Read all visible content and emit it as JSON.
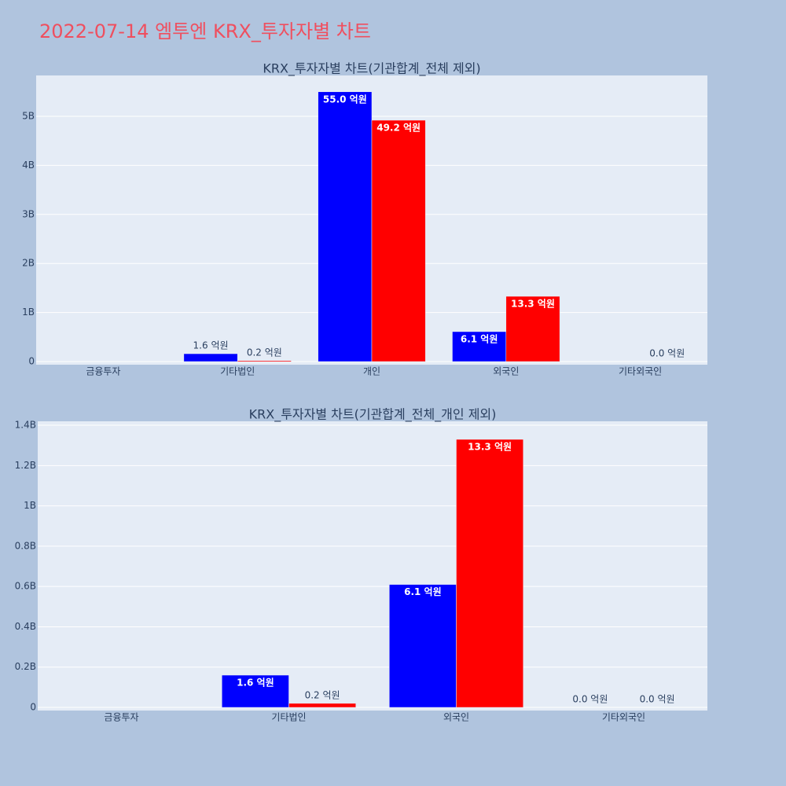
{
  "title": "2022-07-14 엠투엔 KRX_투자자별 차트",
  "chart_data": [
    {
      "type": "bar",
      "title": "KRX_투자자별 차트(기관합계_전체 제외)",
      "categories": [
        "금융투자",
        "기타법인",
        "개인",
        "외국인",
        "기타외국인"
      ],
      "series": [
        {
          "color": "#0000ff",
          "values": [
            null,
            160000000,
            5500000000,
            610000000,
            null
          ],
          "value_labels": [
            null,
            "1.6 억원",
            "55.0 억원",
            "6.1 억원",
            null
          ]
        },
        {
          "color": "#ff0000",
          "values": [
            null,
            20000000,
            4920000000,
            1330000000,
            0
          ],
          "value_labels": [
            null,
            "0.2 억원",
            "49.2 억원",
            "13.3 억원",
            "0.0 억원"
          ]
        }
      ],
      "ylim": [
        -64000000,
        5833000000
      ],
      "yticks": [
        0,
        {
          "value": 1000000000,
          "label": "1B"
        },
        {
          "value": 2000000000,
          "label": "2B"
        },
        {
          "value": 3000000000,
          "label": "3B"
        },
        {
          "value": 4000000000,
          "label": "4B"
        },
        {
          "value": 5000000000,
          "label": "5B"
        }
      ],
      "grid": true
    },
    {
      "type": "bar",
      "title": "KRX_투자자별 차트(기관합계_전체_개인 제외)",
      "categories": [
        "금융투자",
        "기타법인",
        "외국인",
        "기타외국인"
      ],
      "series": [
        {
          "color": "#0000ff",
          "values": [
            null,
            160000000,
            610000000,
            0
          ],
          "value_labels": [
            null,
            "1.6 억원",
            "6.1 억원",
            "0.0 억원"
          ]
        },
        {
          "color": "#ff0000",
          "values": [
            null,
            20000000,
            1330000000,
            0
          ],
          "value_labels": [
            null,
            "0.2 억원",
            "13.3 억원",
            "0.0 억원"
          ]
        }
      ],
      "ylim": [
        -15600000,
        1419700000
      ],
      "yticks": [
        0,
        {
          "value": 200000000,
          "label": "0.2B"
        },
        {
          "value": 400000000,
          "label": "0.4B"
        },
        {
          "value": 600000000,
          "label": "0.6B"
        },
        {
          "value": 800000000,
          "label": "0.8B"
        },
        {
          "value": 1000000000,
          "label": "1B"
        },
        {
          "value": 1200000000,
          "label": "1.2B"
        },
        {
          "value": 1400000000,
          "label": "1.4B"
        }
      ],
      "grid": true
    }
  ]
}
